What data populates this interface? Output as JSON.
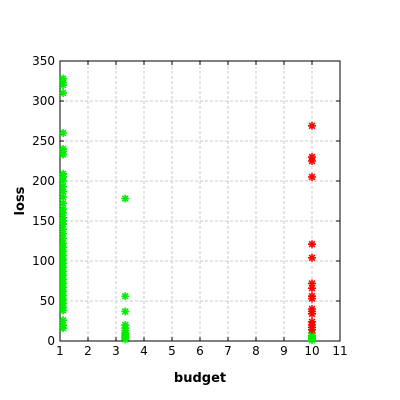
{
  "chart_data": {
    "type": "scatter",
    "title": "",
    "xlabel": "budget",
    "ylabel": "loss",
    "xlim": [
      1,
      11
    ],
    "ylim": [
      0,
      350
    ],
    "xticks": [
      "1",
      "2",
      "3",
      "4",
      "5",
      "6",
      "7",
      "8",
      "9",
      "10",
      "11"
    ],
    "yticks": [
      "0",
      "50",
      "100",
      "150",
      "200",
      "250",
      "300",
      "350"
    ],
    "grid": true,
    "legend": "none",
    "marker": "asterisk",
    "series": [
      {
        "color": "#00ee00",
        "points": [
          [
            1.11,
            328
          ],
          [
            1.11,
            323
          ],
          [
            1.11,
            320
          ],
          [
            1.11,
            310
          ],
          [
            1.11,
            260
          ],
          [
            1.11,
            240
          ],
          [
            1.11,
            237
          ],
          [
            1.11,
            233
          ],
          [
            1.11,
            209
          ],
          [
            1.11,
            205
          ],
          [
            1.11,
            200
          ],
          [
            1.11,
            193
          ],
          [
            1.11,
            187
          ],
          [
            1.11,
            180
          ],
          [
            1.11,
            172
          ],
          [
            1.11,
            165
          ],
          [
            1.11,
            160
          ],
          [
            1.11,
            154
          ],
          [
            1.11,
            150
          ],
          [
            1.11,
            146
          ],
          [
            1.11,
            140
          ],
          [
            1.11,
            134
          ],
          [
            1.11,
            128
          ],
          [
            1.11,
            122
          ],
          [
            1.11,
            117
          ],
          [
            1.11,
            112
          ],
          [
            1.11,
            107
          ],
          [
            1.11,
            102
          ],
          [
            1.11,
            97
          ],
          [
            1.11,
            92
          ],
          [
            1.11,
            87
          ],
          [
            1.11,
            82
          ],
          [
            1.11,
            77
          ],
          [
            1.11,
            72
          ],
          [
            1.11,
            67
          ],
          [
            1.11,
            62
          ],
          [
            1.11,
            57
          ],
          [
            1.11,
            52
          ],
          [
            1.11,
            47
          ],
          [
            1.11,
            42
          ],
          [
            1.11,
            38
          ],
          [
            1.11,
            26
          ],
          [
            1.11,
            20
          ],
          [
            1.11,
            16
          ],
          [
            3.33,
            178
          ],
          [
            3.33,
            56
          ],
          [
            3.33,
            37
          ],
          [
            3.33,
            20
          ],
          [
            3.33,
            16
          ],
          [
            3.33,
            13
          ],
          [
            3.33,
            10
          ],
          [
            3.33,
            8
          ],
          [
            3.33,
            6
          ],
          [
            3.33,
            4
          ],
          [
            3.33,
            2
          ],
          [
            10,
            10
          ],
          [
            10,
            7
          ],
          [
            10,
            5
          ],
          [
            10,
            3
          ],
          [
            10,
            1
          ]
        ]
      },
      {
        "color": "#ff0000",
        "points": [
          [
            10,
            269
          ],
          [
            10,
            230
          ],
          [
            10,
            225
          ],
          [
            10,
            205
          ],
          [
            10,
            121
          ],
          [
            10,
            104
          ],
          [
            10,
            72
          ],
          [
            10,
            66
          ],
          [
            10,
            56
          ],
          [
            10,
            53
          ],
          [
            10,
            40
          ],
          [
            10,
            37
          ],
          [
            10,
            34
          ],
          [
            10,
            24
          ],
          [
            10,
            20
          ],
          [
            10,
            17
          ],
          [
            10,
            14
          ]
        ]
      }
    ]
  }
}
